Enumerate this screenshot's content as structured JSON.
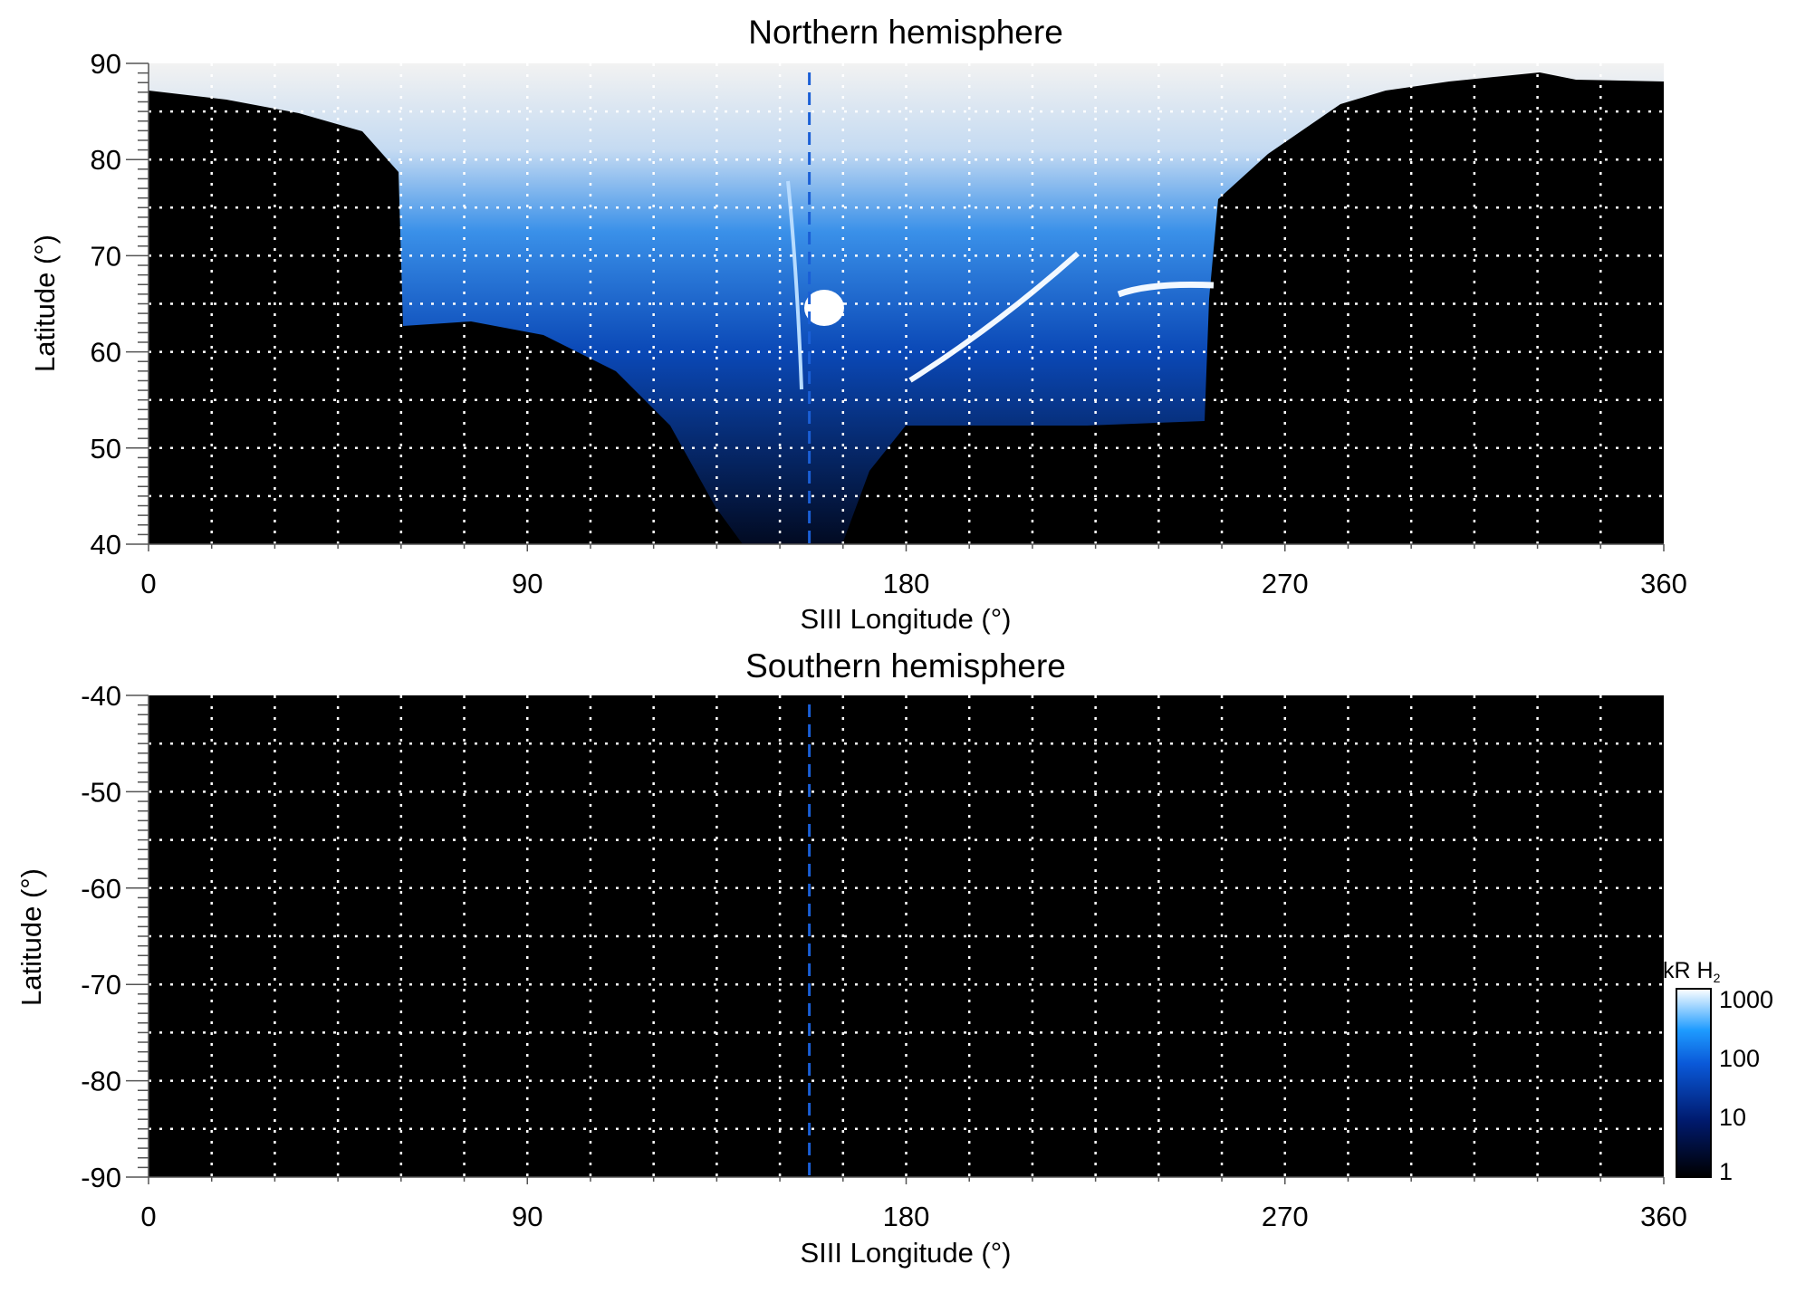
{
  "chart_data": [
    {
      "type": "heatmap",
      "title": "Northern hemisphere",
      "xlabel": "SIII Longitude (°)",
      "ylabel": "Latitude (°)",
      "xlim": [
        0,
        360
      ],
      "ylim": [
        40,
        90
      ],
      "xticks": [
        "0",
        "90",
        "180",
        "270",
        "360"
      ],
      "yticks": [
        "90",
        "80",
        "70",
        "60",
        "50",
        "40"
      ],
      "grid": true,
      "grid_style": "dotted white, every 15° longitude and 5° latitude",
      "reference_line": {
        "longitude": 157,
        "style": "dashed",
        "color": "#1a5fd6"
      },
      "background": "#000000"
    },
    {
      "type": "heatmap",
      "title": "Southern hemisphere",
      "xlabel": "SIII Longitude (°)",
      "ylabel": "Latitude (°)",
      "xlim": [
        0,
        360
      ],
      "ylim": [
        -90,
        -40
      ],
      "xticks": [
        "0",
        "90",
        "180",
        "270",
        "360"
      ],
      "yticks": [
        "-40",
        "-50",
        "-60",
        "-70",
        "-80",
        "-90"
      ],
      "grid": true,
      "reference_line": {
        "longitude": 157,
        "style": "dashed",
        "color": "#1a5fd6"
      },
      "background": "#000000"
    }
  ],
  "colorbar": {
    "label": "kR H",
    "label_sub": "2",
    "scale": "log",
    "range": [
      1,
      1000
    ],
    "ticks": [
      "1000",
      "100",
      "10",
      "1"
    ],
    "colors": [
      "#000000",
      "#001a6e",
      "#0a58d8",
      "#1e9bff",
      "#ffffff"
    ]
  }
}
